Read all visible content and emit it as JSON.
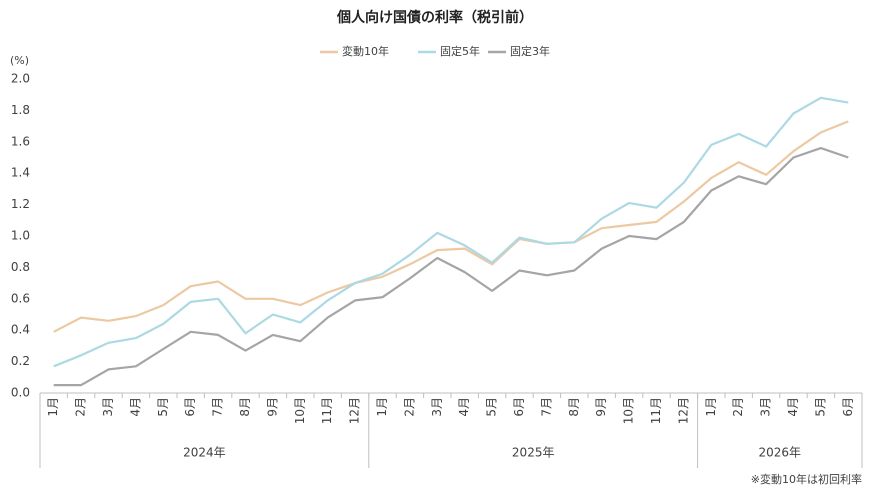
{
  "chart_data": {
    "type": "line",
    "title": "個人向け国債の利率（税引前）",
    "y_unit": "(%)",
    "note": "※変動10年は初回利率",
    "category_groups": [
      {
        "name": "2024年",
        "categories": [
          "1月",
          "2月",
          "3月",
          "4月",
          "5月",
          "6月",
          "7月",
          "8月",
          "9月",
          "10月",
          "11月",
          "12月"
        ]
      },
      {
        "name": "2025年",
        "categories": [
          "1月",
          "2月",
          "3月",
          "4月",
          "5月",
          "6月",
          "7月",
          "8月",
          "9月",
          "10月",
          "11月",
          "12月"
        ]
      },
      {
        "name": "2026年",
        "categories": [
          "1月",
          "2月",
          "3月",
          "4月",
          "5月",
          "6月"
        ]
      }
    ],
    "series": [
      {
        "name": "変動10年",
        "color": "#ecc9a2",
        "values": [
          0.39,
          0.48,
          0.46,
          0.49,
          0.56,
          0.68,
          0.71,
          0.6,
          0.6,
          0.56,
          0.64,
          0.7,
          0.74,
          0.82,
          0.91,
          0.92,
          0.82,
          0.98,
          0.95,
          0.96,
          1.05,
          1.07,
          1.09,
          1.22,
          1.37,
          1.47,
          1.39,
          1.54,
          1.66,
          1.73
        ]
      },
      {
        "name": "固定5年",
        "color": "#acd9e3",
        "values": [
          0.17,
          0.24,
          0.32,
          0.35,
          0.44,
          0.58,
          0.6,
          0.38,
          0.5,
          0.45,
          0.59,
          0.7,
          0.76,
          0.88,
          1.02,
          0.94,
          0.83,
          0.99,
          0.95,
          0.96,
          1.11,
          1.21,
          1.18,
          1.34,
          1.58,
          1.65,
          1.57,
          1.78,
          1.88,
          1.85
        ]
      },
      {
        "name": "固定3年",
        "color": "#a5a5a5",
        "values": [
          0.05,
          0.05,
          0.15,
          0.17,
          0.28,
          0.39,
          0.37,
          0.27,
          0.37,
          0.33,
          0.48,
          0.59,
          0.61,
          0.73,
          0.86,
          0.77,
          0.65,
          0.78,
          0.75,
          0.78,
          0.92,
          1.0,
          0.98,
          1.09,
          1.29,
          1.38,
          1.33,
          1.5,
          1.56,
          1.5
        ]
      }
    ],
    "ylim": [
      0,
      2
    ],
    "yticks": [
      {
        "value": 0,
        "label": "0.0"
      },
      0.2,
      0.4,
      0.6,
      0.8,
      {
        "value": 1,
        "label": "1.0"
      },
      1.2,
      1.4,
      1.6,
      1.8,
      {
        "value": 2,
        "label": "2.0"
      }
    ],
    "grid": false,
    "legend": "top"
  }
}
